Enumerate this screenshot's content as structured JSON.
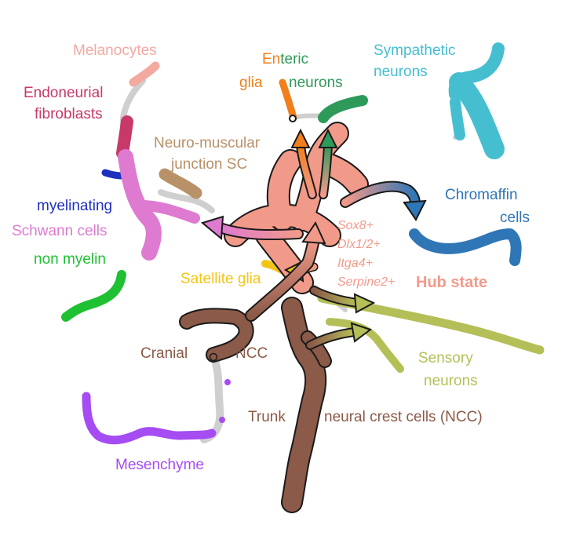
{
  "colors": {
    "trajectory_gray": "#cfcfcf",
    "outline": "#1a1a1a",
    "melanocytes": "#f2a9a0",
    "endoneurial_fibroblasts": "#c8396a",
    "enteric_glia": "#f07f1c",
    "enteric_neurons": "#2e9a5a",
    "sympathetic_neurons": "#45bfd0",
    "neuromuscular_junction_sc": "#b89168",
    "myelinating": "#1f2fc0",
    "schwann_cells": "#de7ad0",
    "non_myelin": "#1fc133",
    "chromaffin_cells": "#2f76b6",
    "satellite_glia": "#f2c416",
    "hub_state": "#f29a8a",
    "sensory_neurons": "#b5bf58",
    "cranial_ncc": "#8b5a48",
    "trunk_ncc": "#8b5a48",
    "mesenchyme": "#a54cf2"
  },
  "labels": {
    "melanocytes": "Melanocytes",
    "endoneurial_1": "Endoneurial",
    "endoneurial_2": "fibroblasts",
    "enteric_prefix": "En",
    "enteric_suffix": "teric",
    "glia": "glia",
    "neurons": "neurons",
    "sympathetic_1": "Sympathetic",
    "sympathetic_2": "neurons",
    "nmj_1": "Neuro-muscular",
    "nmj_2": "junction SC",
    "myelinating": "myelinating",
    "schwann": "Schwann cells",
    "non_myelin": "non myelin",
    "chromaffin_1": "Chromaffin",
    "chromaffin_2": "cells",
    "satellite_glia": "Satellite glia",
    "genes": [
      "Sox8+",
      "Dlx1/2+",
      "Itga4+",
      "Serpine2+"
    ],
    "hub_state": "Hub state",
    "cranial": "Cranial",
    "ncc": "NCC",
    "sensory_1": "Sensory",
    "sensory_2": "neurons",
    "trunk": "Trunk",
    "neural_crest": "neural crest cells (NCC)",
    "mesenchyme": "Mesenchyme"
  }
}
